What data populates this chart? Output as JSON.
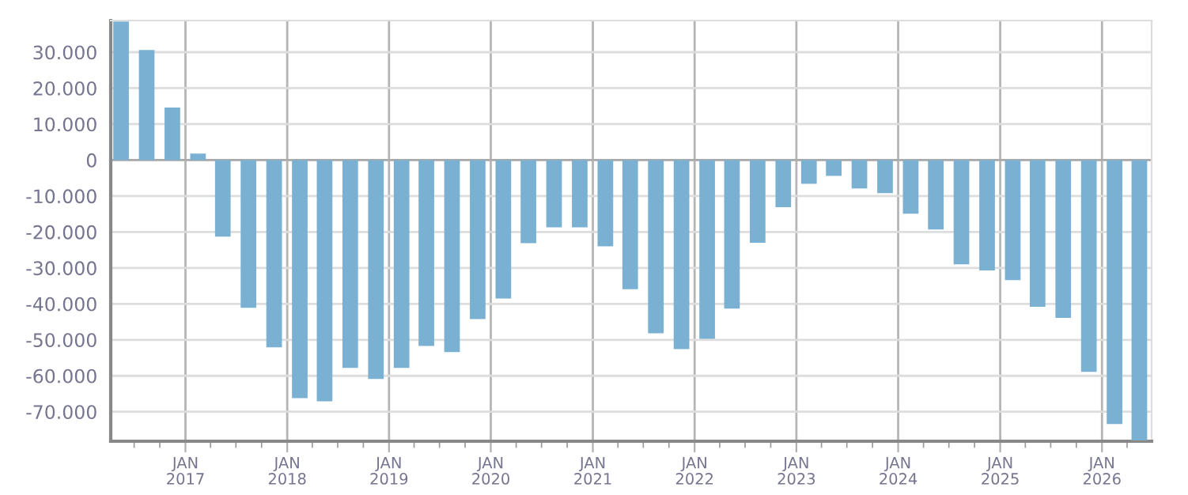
{
  "chart_data": {
    "type": "bar",
    "color": "#7ab1d2",
    "x": [
      "2016-05-15",
      "2016-08-15",
      "2016-11-15",
      "2017-02-15",
      "2017-05-15",
      "2017-08-15",
      "2017-11-15",
      "2018-02-15",
      "2018-05-15",
      "2018-08-15",
      "2018-11-15",
      "2019-02-15",
      "2019-05-15",
      "2019-08-15",
      "2019-11-15",
      "2020-02-15",
      "2020-05-15",
      "2020-08-15",
      "2020-11-15",
      "2021-02-15",
      "2021-05-15",
      "2021-08-15",
      "2021-11-15",
      "2022-02-15",
      "2022-05-15",
      "2022-08-15",
      "2022-11-15",
      "2023-02-15",
      "2023-05-15",
      "2023-08-15",
      "2023-11-15",
      "2024-02-15",
      "2024-05-15",
      "2024-08-15",
      "2024-11-15",
      "2025-02-15",
      "2025-05-15",
      "2025-08-15",
      "2025-11-15",
      "2026-02-15",
      "2026-05-15"
    ],
    "values": [
      38500,
      30600,
      14600,
      1800,
      -21300,
      -41100,
      -52100,
      -66200,
      -67100,
      -57800,
      -60900,
      -57800,
      -51700,
      -53400,
      -44200,
      -38500,
      -23100,
      -18700,
      -18700,
      -24000,
      -35900,
      -48200,
      -52600,
      -49700,
      -41300,
      -23000,
      -13100,
      -6600,
      -4400,
      -7900,
      -9200,
      -14900,
      -19300,
      -29000,
      -30700,
      -33400,
      -40800,
      -43900,
      -58900,
      -73400,
      -78000
    ],
    "ylim": [
      -78200,
      38800
    ],
    "yticks": [
      {
        "value": -70000,
        "label": "-70.000"
      },
      {
        "value": -60000,
        "label": "-60.000"
      },
      {
        "value": -50000,
        "label": "-50.000"
      },
      {
        "value": -40000,
        "label": "-40.000"
      },
      {
        "value": -30000,
        "label": "-30.000"
      },
      {
        "value": -20000,
        "label": "-20.000"
      },
      {
        "value": -10000,
        "label": "-10.000"
      },
      0,
      {
        "value": 10000,
        "label": "10.000"
      },
      {
        "value": 20000,
        "label": "20.000"
      },
      {
        "value": 30000,
        "label": "30.000"
      }
    ],
    "xlim": [
      "2016-04-08",
      "2026-06-28"
    ],
    "xticks": [
      {
        "value": "2017-01-01",
        "label": "JAN\n2017"
      },
      {
        "value": "2018-01-01",
        "label": "JAN\n2018"
      },
      {
        "value": "2019-01-01",
        "label": "JAN\n2019"
      },
      {
        "value": "2020-01-01",
        "label": "JAN\n2020"
      },
      {
        "value": "2021-01-01",
        "label": "JAN\n2021"
      },
      {
        "value": "2022-01-01",
        "label": "JAN\n2022"
      },
      {
        "value": "2023-01-01",
        "label": "JAN\n2023"
      },
      {
        "value": "2024-01-01",
        "label": "JAN\n2024"
      },
      {
        "value": "2025-01-01",
        "label": "JAN\n2025"
      },
      {
        "value": "2026-01-01",
        "label": "JAN\n2026"
      }
    ],
    "grid": true
  }
}
